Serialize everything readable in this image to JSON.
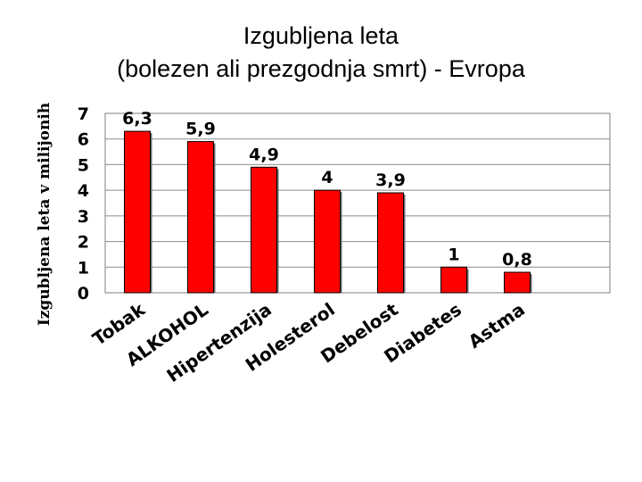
{
  "title_line1": "Izgubljena leta",
  "title_line2": "(bolezen ali prezgodnja smrt) - Evropa",
  "chart_data": {
    "type": "bar",
    "categories": [
      "Tobak",
      "ALKOHOL",
      "Hipertenzija",
      "Holesterol",
      "Debelost",
      "Diabetes",
      "Astma"
    ],
    "values": [
      6.3,
      5.9,
      4.9,
      4,
      3.9,
      1,
      0.8
    ],
    "value_labels": [
      "6,3",
      "5,9",
      "4,9",
      "4",
      "3,9",
      "1",
      "0,8"
    ],
    "ylabel": "Izgubljena leta v milijonih",
    "ylim": [
      0,
      7
    ],
    "yticks": [
      "0",
      "1",
      "2",
      "3",
      "4",
      "5",
      "6",
      "7"
    ],
    "grid": true,
    "bar_color": "#ff0000"
  }
}
